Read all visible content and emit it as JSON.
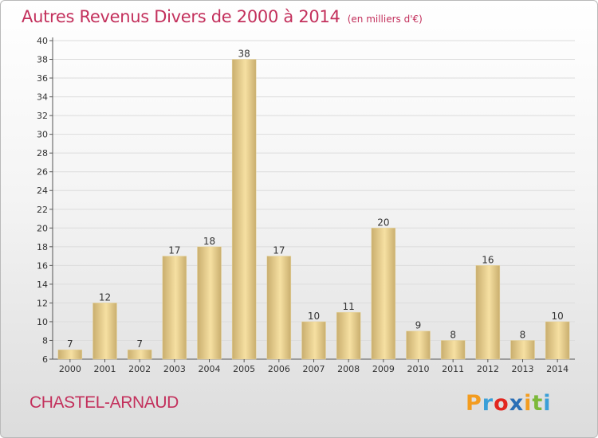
{
  "title": "Autres Revenus Divers de 2000 à 2014",
  "title_unit": "(en milliers d'€)",
  "commune": "CHASTEL-ARNAUD",
  "logo": {
    "text": "Proxiti",
    "letters": [
      {
        "ch": "P",
        "color": "#f39c1f"
      },
      {
        "ch": "r",
        "color": "#3a9fd8"
      },
      {
        "ch": "o",
        "color": "#e2261f"
      },
      {
        "ch": "x",
        "color": "#2b6fb6"
      },
      {
        "ch": "i",
        "color": "#f39c1f"
      },
      {
        "ch": "t",
        "color": "#7cb93a"
      },
      {
        "ch": "i",
        "color": "#3a9fd8"
      }
    ]
  },
  "colors": {
    "accent": "#c3305c",
    "bar_light": "#f6e0a2",
    "bar_dark": "#c9ae6e",
    "grid": "#dcdcdc",
    "axis": "#555555",
    "text": "#333333"
  },
  "chart_data": {
    "type": "bar",
    "categories": [
      "2000",
      "2001",
      "2002",
      "2003",
      "2004",
      "2005",
      "2006",
      "2007",
      "2008",
      "2009",
      "2010",
      "2011",
      "2012",
      "2013",
      "2014"
    ],
    "values": [
      7,
      12,
      7,
      17,
      18,
      38,
      17,
      10,
      11,
      20,
      9,
      8,
      16,
      8,
      10
    ],
    "ylim": [
      6,
      40
    ],
    "yticks": [
      6,
      8,
      10,
      12,
      14,
      16,
      18,
      20,
      22,
      24,
      26,
      28,
      30,
      32,
      34,
      36,
      38,
      40
    ],
    "grid": true,
    "data_labels": true
  }
}
